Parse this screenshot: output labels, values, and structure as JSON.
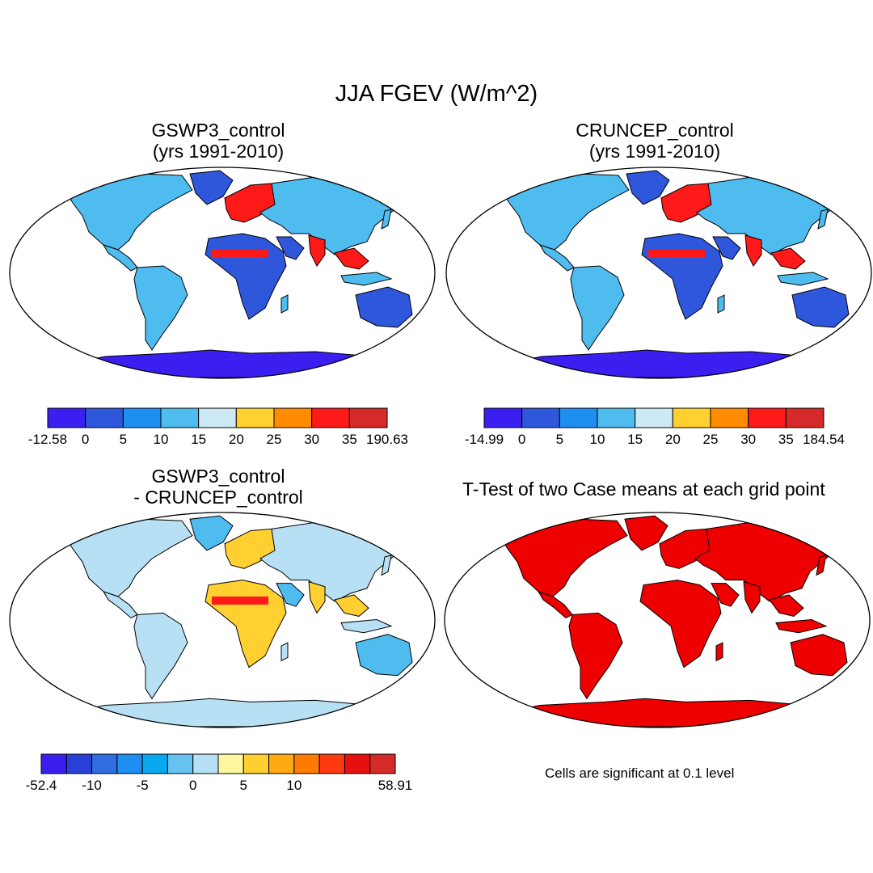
{
  "main_title": "JJA FGEV (W/m^2)",
  "panels": {
    "top_left": {
      "title_line1": "GSWP3_control",
      "title_line2": "(yrs 1991-2010)",
      "colorbar": {
        "colors": [
          "#3a1ff0",
          "#2f57dc",
          "#1e8ef0",
          "#4fbcf0",
          "#cce8f5",
          "#ffd030",
          "#ff8c00",
          "#ff1a1a",
          "#d42a2a"
        ],
        "labels": [
          "-12.58",
          "0",
          "5",
          "10",
          "15",
          "20",
          "25",
          "30",
          "35",
          "190.63"
        ]
      }
    },
    "top_right": {
      "title_line1": "CRUNCEP_control",
      "title_line2": "(yrs 1991-2010)",
      "colorbar": {
        "colors": [
          "#3a1ff0",
          "#2f57dc",
          "#1e8ef0",
          "#4fbcf0",
          "#cce8f5",
          "#ffd030",
          "#ff8c00",
          "#ff1a1a",
          "#d42a2a"
        ],
        "labels": [
          "-14.99",
          "0",
          "5",
          "10",
          "15",
          "20",
          "25",
          "30",
          "35",
          "184.54"
        ]
      }
    },
    "bottom_left": {
      "title_line1": "GSWP3_control",
      "title_line2": "- CRUNCEP_control",
      "colorbar": {
        "colors": [
          "#3a1ff0",
          "#2a3fd8",
          "#2f6ee0",
          "#1e8ef0",
          "#0aa8f0",
          "#66c2f0",
          "#b8e0f5",
          "#fff7a0",
          "#ffd030",
          "#ffaa10",
          "#ff7a00",
          "#ff3a10",
          "#e61010",
          "#d42a2a"
        ],
        "labels": [
          "-52.4",
          "",
          "-10",
          "",
          "-5",
          "",
          "0",
          "",
          "5",
          "",
          "10",
          "",
          "",
          "",
          "58.91"
        ]
      }
    },
    "bottom_right": {
      "title": "T-Test of two Case means at each grid point",
      "note": "Cells are significant at 0.1 level"
    }
  },
  "map_colors": {
    "ocean": "#ffffff",
    "antarctica_abs": "#3a1ff0",
    "antarctica_diff": "#b8e0f5",
    "land_blue": "#2f57dc",
    "land_light": "#4fbcf0",
    "land_warm": "#ff8c00",
    "land_hot": "#ff1a1a",
    "diff_yellow": "#ffd030",
    "diff_light": "#b8e0f5",
    "ttest_sig": "#ee0000"
  }
}
